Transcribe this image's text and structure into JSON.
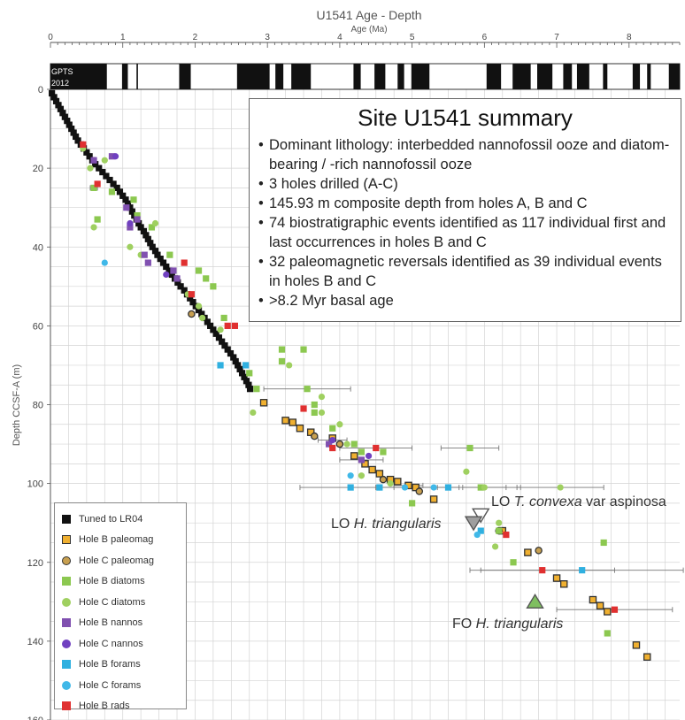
{
  "chart_data": {
    "type": "scatter",
    "title": "U1541 Age - Depth",
    "xlabel": "Age (Ma)",
    "ylabel": "Depth CCSF-A (m)",
    "xlim": [
      0,
      8.7
    ],
    "ylim": [
      0,
      160
    ],
    "x_ticks": [
      "0",
      "1",
      "2",
      "3",
      "4",
      "5",
      "6",
      "7",
      "8"
    ],
    "y_ticks": [
      "0",
      "20",
      "40",
      "60",
      "80",
      "100",
      "120",
      "140",
      "160"
    ],
    "grid": true,
    "polarity_label_1": "GPTS",
    "polarity_label_2": "2012",
    "normal_polarity_intervals": [
      [
        0,
        0.78
      ],
      [
        0.99,
        1.07
      ],
      [
        1.19,
        1.21
      ],
      [
        1.78,
        1.94
      ],
      [
        2.58,
        3.03
      ],
      [
        3.11,
        3.22
      ],
      [
        3.33,
        3.6
      ],
      [
        4.19,
        4.29
      ],
      [
        4.48,
        4.63
      ],
      [
        4.8,
        4.89
      ],
      [
        4.99,
        5.24
      ],
      [
        6.03,
        6.23
      ],
      [
        6.39,
        6.64
      ],
      [
        6.73,
        6.94
      ],
      [
        7.09,
        7.21
      ],
      [
        7.28,
        7.45
      ],
      [
        7.64,
        7.7
      ],
      [
        8.05,
        8.15
      ],
      [
        8.25,
        8.3
      ],
      [
        8.55,
        8.7
      ]
    ],
    "series": [
      {
        "name": "Tuned to LR04",
        "color": "#111111",
        "marker": "square",
        "points": [
          [
            0.02,
            1
          ],
          [
            0.05,
            2
          ],
          [
            0.08,
            3
          ],
          [
            0.11,
            4
          ],
          [
            0.14,
            5
          ],
          [
            0.17,
            6
          ],
          [
            0.2,
            7
          ],
          [
            0.23,
            8
          ],
          [
            0.26,
            9
          ],
          [
            0.29,
            10
          ],
          [
            0.32,
            11
          ],
          [
            0.35,
            12
          ],
          [
            0.38,
            13
          ],
          [
            0.42,
            14
          ],
          [
            0.46,
            15
          ],
          [
            0.5,
            16
          ],
          [
            0.54,
            17
          ],
          [
            0.58,
            18
          ],
          [
            0.62,
            19
          ],
          [
            0.67,
            20
          ],
          [
            0.72,
            21
          ],
          [
            0.77,
            22
          ],
          [
            0.82,
            23
          ],
          [
            0.87,
            24
          ],
          [
            0.92,
            25
          ],
          [
            0.96,
            26
          ],
          [
            1.0,
            27
          ],
          [
            1.04,
            28
          ],
          [
            1.07,
            29
          ],
          [
            1.1,
            30
          ],
          [
            1.13,
            31
          ],
          [
            1.16,
            32
          ],
          [
            1.19,
            33
          ],
          [
            1.22,
            34
          ],
          [
            1.25,
            35
          ],
          [
            1.29,
            36
          ],
          [
            1.32,
            37
          ],
          [
            1.35,
            38
          ],
          [
            1.38,
            39
          ],
          [
            1.41,
            40
          ],
          [
            1.45,
            41
          ],
          [
            1.48,
            42
          ],
          [
            1.52,
            43
          ],
          [
            1.56,
            44
          ],
          [
            1.6,
            45
          ],
          [
            1.64,
            46
          ],
          [
            1.68,
            47
          ],
          [
            1.72,
            48
          ],
          [
            1.76,
            49
          ],
          [
            1.8,
            50
          ],
          [
            1.85,
            51
          ],
          [
            1.89,
            52
          ],
          [
            1.93,
            53
          ],
          [
            1.97,
            54
          ],
          [
            2.01,
            55
          ],
          [
            2.05,
            56
          ],
          [
            2.09,
            57
          ],
          [
            2.13,
            58
          ],
          [
            2.17,
            59
          ],
          [
            2.21,
            60
          ],
          [
            2.25,
            61
          ],
          [
            2.29,
            62
          ],
          [
            2.33,
            63
          ],
          [
            2.37,
            64
          ],
          [
            2.41,
            65
          ],
          [
            2.45,
            66
          ],
          [
            2.49,
            67
          ],
          [
            2.53,
            68
          ],
          [
            2.56,
            69
          ],
          [
            2.59,
            70
          ],
          [
            2.62,
            71
          ],
          [
            2.65,
            72
          ],
          [
            2.68,
            73
          ],
          [
            2.71,
            74
          ],
          [
            2.74,
            75
          ],
          [
            2.76,
            76
          ]
        ]
      },
      {
        "name": "Hole B paleomag",
        "color": "#f0b030",
        "marker": "square-outlined",
        "points": [
          [
            2.95,
            79.5
          ],
          [
            3.25,
            84
          ],
          [
            3.35,
            84.5
          ],
          [
            3.45,
            86
          ],
          [
            3.6,
            87
          ],
          [
            3.9,
            88.5
          ],
          [
            4.2,
            93
          ],
          [
            4.35,
            95
          ],
          [
            4.45,
            96.5
          ],
          [
            4.55,
            97.5
          ],
          [
            4.7,
            99
          ],
          [
            4.8,
            99.5
          ],
          [
            4.95,
            100.5
          ],
          [
            5.05,
            101
          ],
          [
            5.3,
            104
          ],
          [
            6.25,
            112
          ],
          [
            6.6,
            117.5
          ],
          [
            7.0,
            124
          ],
          [
            7.1,
            125.5
          ],
          [
            7.5,
            129.5
          ],
          [
            7.6,
            131
          ],
          [
            7.7,
            132.5
          ],
          [
            8.1,
            141
          ],
          [
            8.25,
            144
          ]
        ],
        "error_x": [
          [
            4.9,
            0.2
          ],
          [
            5.05,
            0.3
          ]
        ]
      },
      {
        "name": "Hole C paleomag",
        "color": "#c8a050",
        "marker": "circle-outlined",
        "points": [
          [
            1.95,
            57
          ],
          [
            3.65,
            88
          ],
          [
            4.0,
            90
          ],
          [
            4.6,
            99
          ],
          [
            5.1,
            102
          ],
          [
            6.2,
            112
          ],
          [
            6.75,
            117
          ]
        ]
      },
      {
        "name": "Hole B diatoms",
        "color": "#8cc850",
        "marker": "square",
        "points": [
          [
            0.6,
            25
          ],
          [
            0.65,
            33
          ],
          [
            0.85,
            26
          ],
          [
            1.15,
            28
          ],
          [
            1.2,
            32
          ],
          [
            1.4,
            35
          ],
          [
            1.65,
            42
          ],
          [
            2.05,
            46
          ],
          [
            2.15,
            48
          ],
          [
            2.25,
            50
          ],
          [
            2.4,
            58
          ],
          [
            2.75,
            72
          ],
          [
            2.85,
            76
          ],
          [
            3.2,
            66
          ],
          [
            3.2,
            69
          ],
          [
            3.5,
            66
          ],
          [
            3.55,
            76
          ],
          [
            3.65,
            80
          ],
          [
            3.65,
            82
          ],
          [
            3.9,
            86
          ],
          [
            4.2,
            90
          ],
          [
            4.3,
            92
          ],
          [
            4.6,
            92
          ],
          [
            5.0,
            105
          ],
          [
            5.8,
            91
          ],
          [
            5.95,
            101
          ],
          [
            6.2,
            112
          ],
          [
            6.4,
            120
          ],
          [
            7.65,
            115
          ],
          [
            7.7,
            138
          ]
        ],
        "error_x": [
          [
            0.6,
            0.05
          ],
          [
            3.55,
            0.6
          ],
          [
            5.8,
            0.4
          ]
        ]
      },
      {
        "name": "Hole C diatoms",
        "color": "#9fd060",
        "marker": "circle",
        "points": [
          [
            0.45,
            15
          ],
          [
            0.55,
            20
          ],
          [
            0.6,
            35
          ],
          [
            0.75,
            18
          ],
          [
            1.1,
            40
          ],
          [
            1.25,
            42
          ],
          [
            1.45,
            34
          ],
          [
            1.9,
            52
          ],
          [
            2.05,
            55
          ],
          [
            2.1,
            58
          ],
          [
            2.35,
            61
          ],
          [
            2.8,
            82
          ],
          [
            3.3,
            70
          ],
          [
            3.75,
            78
          ],
          [
            3.75,
            82
          ],
          [
            4.0,
            85
          ],
          [
            4.1,
            90
          ],
          [
            4.3,
            98
          ],
          [
            4.55,
            101
          ],
          [
            4.7,
            100
          ],
          [
            5.75,
            97
          ],
          [
            6.0,
            101
          ],
          [
            6.2,
            110
          ],
          [
            6.15,
            116
          ],
          [
            7.05,
            101
          ]
        ],
        "error_x": [
          [
            4.5,
            1.1
          ],
          [
            6.0,
            0.3
          ],
          [
            7.05,
            0.6
          ]
        ]
      },
      {
        "name": "Hole B nannos",
        "color": "#8050b0",
        "marker": "square",
        "points": [
          [
            0.6,
            18
          ],
          [
            0.85,
            17
          ],
          [
            1.05,
            30
          ],
          [
            1.1,
            35
          ],
          [
            1.2,
            33
          ],
          [
            1.3,
            42
          ],
          [
            1.35,
            44
          ],
          [
            1.7,
            46
          ],
          [
            1.75,
            48
          ],
          [
            3.85,
            90
          ],
          [
            4.3,
            94
          ]
        ],
        "error_x": [
          [
            4.3,
            0.3
          ]
        ]
      },
      {
        "name": "Hole C nannos",
        "color": "#7040c0",
        "marker": "circle",
        "points": [
          [
            0.9,
            17
          ],
          [
            1.1,
            34
          ],
          [
            1.6,
            47
          ],
          [
            3.9,
            89
          ],
          [
            4.4,
            93
          ]
        ],
        "error_x": [
          [
            3.9,
            0.2
          ]
        ]
      },
      {
        "name": "Hole B forams",
        "color": "#30b0e0",
        "marker": "square",
        "points": [
          [
            2.35,
            70
          ],
          [
            2.7,
            70
          ],
          [
            4.15,
            101
          ],
          [
            4.55,
            101
          ],
          [
            5.5,
            101
          ],
          [
            5.95,
            112
          ],
          [
            7.35,
            122
          ]
        ],
        "error_x": [
          [
            5.5,
            1.0
          ],
          [
            7.35,
            1.4
          ]
        ]
      },
      {
        "name": "Hole C forams",
        "color": "#40b8e8",
        "marker": "circle",
        "points": [
          [
            0.75,
            44
          ],
          [
            4.15,
            98
          ],
          [
            4.9,
            101
          ],
          [
            5.3,
            101
          ],
          [
            5.9,
            113
          ]
        ],
        "error_x": [
          [
            4.9,
            0.4
          ]
        ]
      },
      {
        "name": "Hole B rads",
        "color": "#e03030",
        "marker": "square",
        "points": [
          [
            0.45,
            14
          ],
          [
            0.65,
            24
          ],
          [
            1.85,
            44
          ],
          [
            1.95,
            52
          ],
          [
            2.45,
            60
          ],
          [
            2.55,
            60
          ],
          [
            3.5,
            81
          ],
          [
            3.9,
            91
          ],
          [
            4.5,
            91
          ],
          [
            6.3,
            113
          ],
          [
            6.8,
            122
          ],
          [
            7.8,
            132
          ]
        ],
        "error_x": [
          [
            4.5,
            0.5
          ],
          [
            6.8,
            1.0
          ],
          [
            7.8,
            0.8
          ]
        ]
      }
    ],
    "annotations": [
      {
        "text": "LO ",
        "italic": "T. convexa",
        "rest": " var aspinosa",
        "x": 5.95,
        "y": 108
      },
      {
        "text": "LO ",
        "italic": "H. triangularis",
        "rest": "",
        "x": 5.85,
        "y": 110
      },
      {
        "text": "FO ",
        "italic": "H. triangularis",
        "rest": "",
        "x": 6.7,
        "y": 130
      }
    ]
  },
  "summary": {
    "title": "Site U1541 summary",
    "bullets": [
      "Dominant lithology: interbedded nannofossil ooze and diatom-bearing / -rich nannofossil ooze",
      "3 holes drilled (A-C)",
      "145.93 m composite depth from holes A, B and C",
      "74 biostratigraphic events identified as 117 individual first and last occurrences in holes B and C",
      "32 paleomagnetic reversals identified as 39 individual events in holes B and C",
      ">8.2 Myr basal age"
    ]
  },
  "legend": [
    {
      "label": "Tuned to LR04",
      "color": "#111111",
      "shape": "square"
    },
    {
      "label": "Hole B paleomag",
      "color": "#f0b030",
      "shape": "square-outlined"
    },
    {
      "label": "Hole C paleomag",
      "color": "#c8a050",
      "shape": "circle-outlined"
    },
    {
      "label": "Hole B diatoms",
      "color": "#8cc850",
      "shape": "square"
    },
    {
      "label": "Hole C diatoms",
      "color": "#9fd060",
      "shape": "circle"
    },
    {
      "label": "Hole B nannos",
      "color": "#8050b0",
      "shape": "square"
    },
    {
      "label": "Hole C nannos",
      "color": "#7040c0",
      "shape": "circle"
    },
    {
      "label": "Hole B forams",
      "color": "#30b0e0",
      "shape": "square"
    },
    {
      "label": "Hole C forams",
      "color": "#40b8e8",
      "shape": "circle"
    },
    {
      "label": "Hole B rads",
      "color": "#e03030",
      "shape": "square"
    }
  ]
}
